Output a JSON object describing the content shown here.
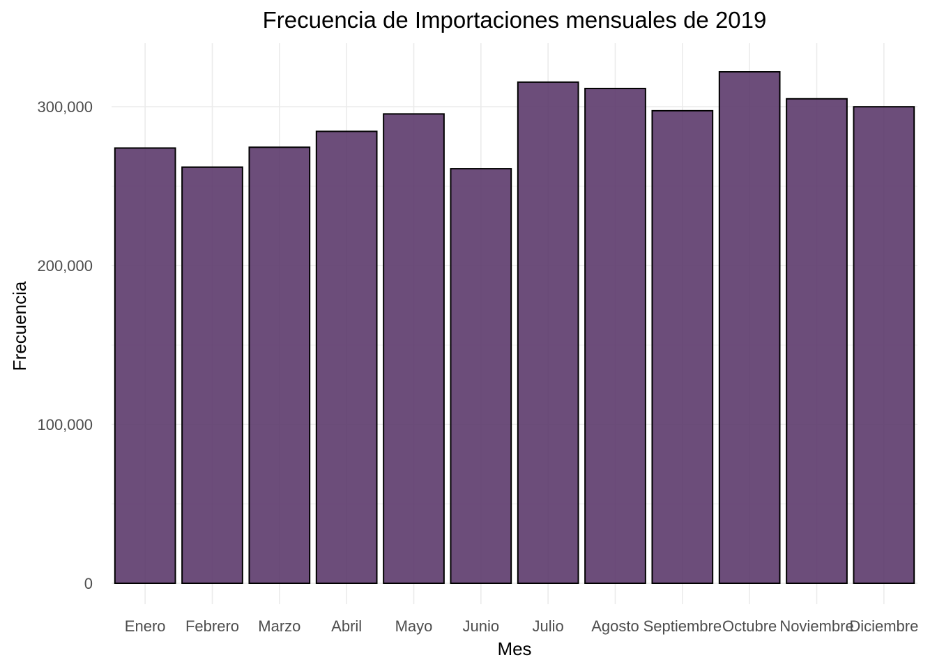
{
  "colors": {
    "bar_fill": "#5c3a6b",
    "bar_stroke": "#000000",
    "background": "#ffffff"
  },
  "chart_data": {
    "type": "bar",
    "title": "Frecuencia de Importaciones mensuales de 2019",
    "xlabel": "Mes",
    "ylabel": "Frecuencia",
    "categories": [
      "Enero",
      "Febrero",
      "Marzo",
      "Abril",
      "Mayo",
      "Junio",
      "Julio",
      "Agosto",
      "Septiembre",
      "Octubre",
      "Noviembre",
      "Diciembre"
    ],
    "values": [
      274000,
      262000,
      274500,
      284500,
      295500,
      261000,
      315500,
      311500,
      297500,
      322000,
      305000,
      300000
    ],
    "ylim": [
      0,
      340000
    ],
    "yticks": [
      0,
      100000,
      200000,
      300000
    ],
    "ytick_labels": [
      "0",
      "100,000",
      "200,000",
      "300,000"
    ],
    "grid": true,
    "legend": "none"
  }
}
